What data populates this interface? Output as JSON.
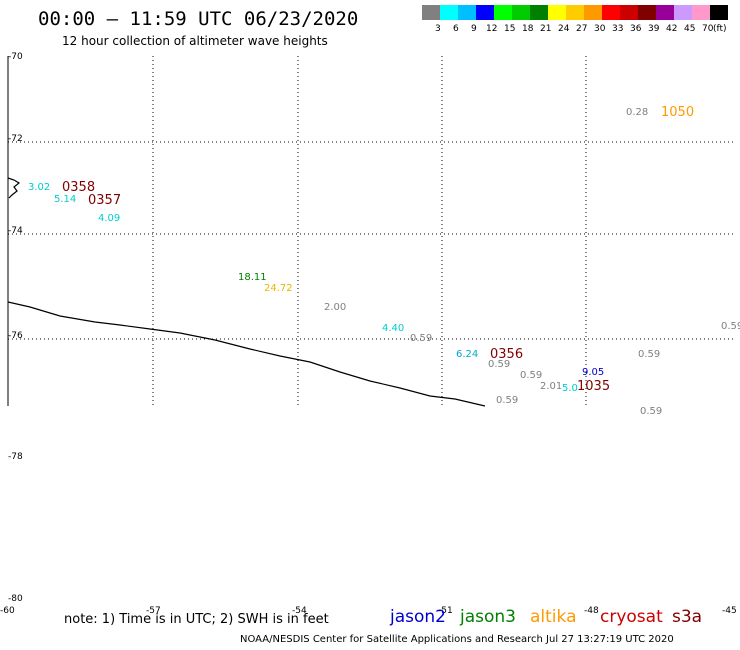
{
  "header": {
    "title": "00:00 – 11:59 UTC 06/23/2020",
    "subtitle": "12 hour collection of altimeter wave heights"
  },
  "legend": {
    "colors": [
      "#808080",
      "#00ffff",
      "#00bfff",
      "#0000ff",
      "#00ff00",
      "#00cc00",
      "#008000",
      "#ffff00",
      "#ffcc00",
      "#ff9900",
      "#ff0000",
      "#cc0000",
      "#800000",
      "#990099",
      "#cc99ff",
      "#ff99cc",
      "#000000"
    ],
    "labels": [
      "3",
      "6",
      "9",
      "12",
      "15",
      "18",
      "21",
      "24",
      "27",
      "30",
      "33",
      "36",
      "39",
      "42",
      "45",
      "70"
    ],
    "unit": "(ft)"
  },
  "latitude_labels": [
    "-70",
    "-72",
    "-74",
    "-76",
    "-78",
    "-80"
  ],
  "longitude_labels": [
    "-60",
    "-57",
    "-54",
    "-51",
    "-48",
    "-45"
  ],
  "wave_heights": [
    {
      "text": "3.02",
      "color": "#00cccc"
    },
    {
      "text": "5.14",
      "color": "#00cccc"
    },
    {
      "text": "4.09",
      "color": "#00cccc"
    },
    {
      "text": "18.11",
      "color": "#008000"
    },
    {
      "text": "24.72",
      "color": "#e6b800"
    },
    {
      "text": "2.00",
      "color": "#808080"
    },
    {
      "text": "4.40",
      "color": "#00cccc"
    },
    {
      "text": "0.59",
      "color": "#808080"
    },
    {
      "text": "6.24",
      "color": "#00aacc"
    },
    {
      "text": "0.59",
      "color": "#808080"
    },
    {
      "text": "0.59",
      "color": "#808080"
    },
    {
      "text": "2.01",
      "color": "#808080"
    },
    {
      "text": "5.0",
      "color": "#00cccc"
    },
    {
      "text": "9.05",
      "color": "#0000cc"
    },
    {
      "text": "0.59",
      "color": "#808080"
    },
    {
      "text": "0.59",
      "color": "#808080"
    },
    {
      "text": "0.59",
      "color": "#808080"
    },
    {
      "text": "0.59",
      "color": "#808080"
    },
    {
      "text": "0.28",
      "color": "#808080"
    }
  ],
  "pass_times": [
    {
      "text": "0358",
      "color": "#800000"
    },
    {
      "text": "0357",
      "color": "#800000"
    },
    {
      "text": "0356",
      "color": "#800000"
    },
    {
      "text": "1035",
      "color": "#800000"
    },
    {
      "text": "1050",
      "color": "#ff9900"
    }
  ],
  "footer": {
    "note": "note: 1) Time is in UTC; 2) SWH is in feet",
    "satellites": [
      {
        "name": "jason2",
        "color": "#0000cc"
      },
      {
        "name": "jason3",
        "color": "#008000"
      },
      {
        "name": "altika",
        "color": "#ff9900"
      },
      {
        "name": "cryosat",
        "color": "#cc0000"
      },
      {
        "name": "s3a",
        "color": "#800000"
      }
    ],
    "credit": "NOAA/NESDIS Center for Satellite Applications and Research    Jul 27 13:27:19 UTC 2020"
  }
}
